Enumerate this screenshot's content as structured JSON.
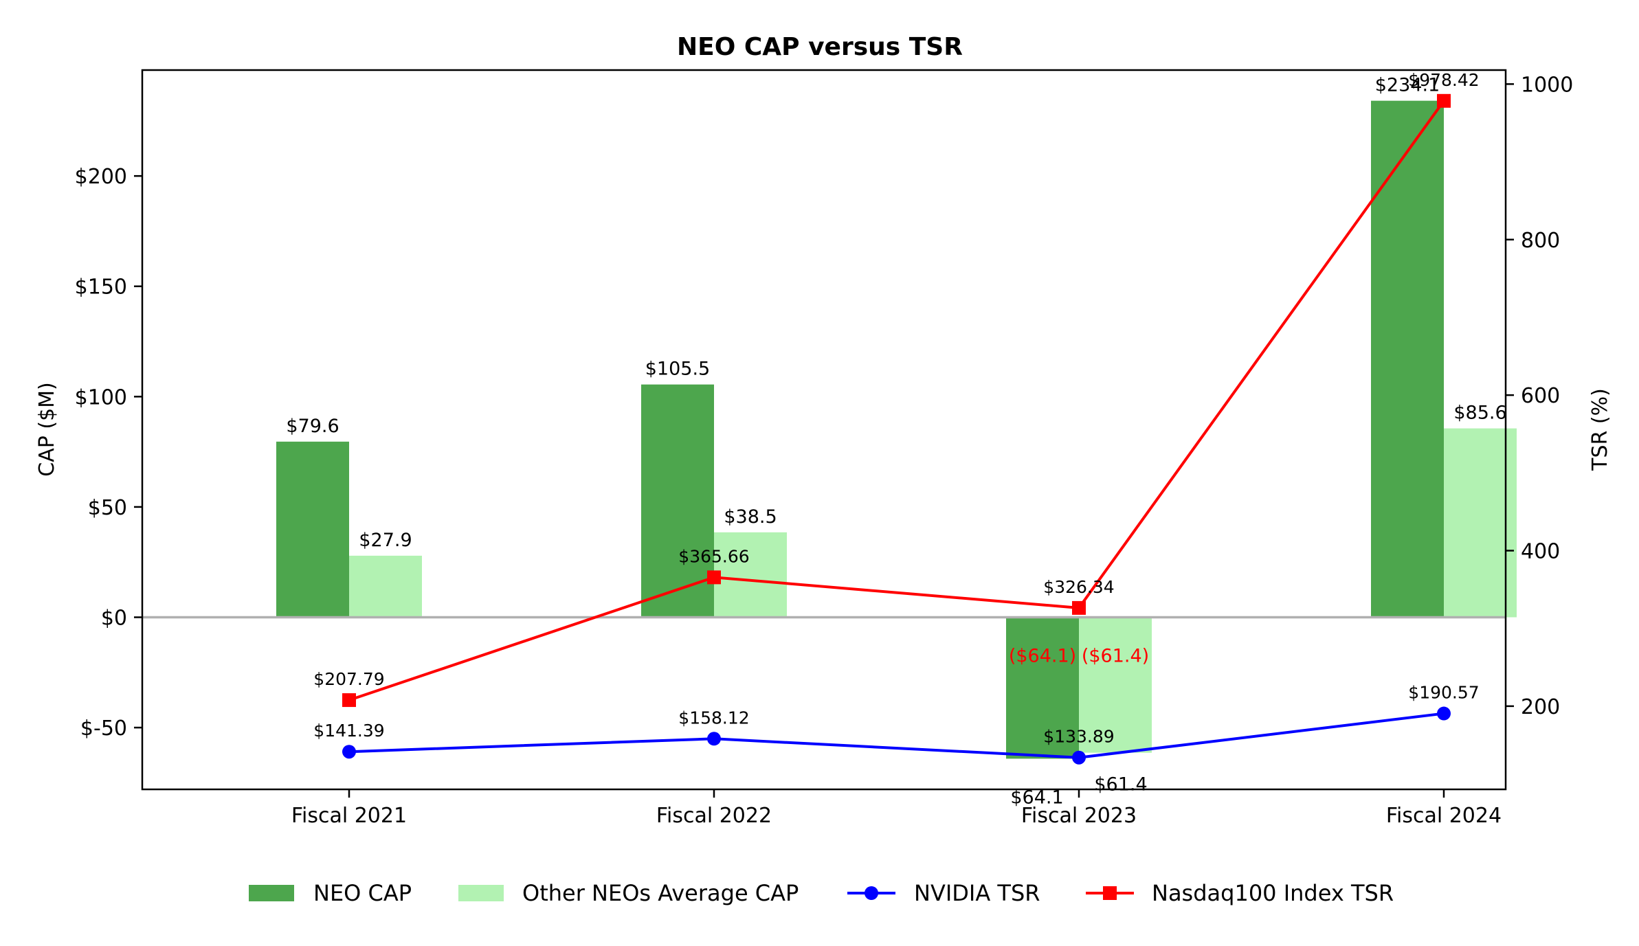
{
  "chart_data": {
    "type": "bar",
    "title": "NEO CAP versus TSR",
    "categories": [
      "Fiscal 2021",
      "Fiscal 2022",
      "Fiscal 2023",
      "Fiscal 2024"
    ],
    "y_left": {
      "label": "CAP ($M)",
      "lim": [
        -78,
        248
      ],
      "ticks": [
        -50,
        0,
        50,
        100,
        150,
        200
      ],
      "tick_labels": [
        "$-50",
        "$0",
        "$50",
        "$100",
        "$150",
        "$200"
      ]
    },
    "y_right": {
      "label": "TSR (%)",
      "lim": [
        93,
        1018
      ],
      "ticks": [
        200,
        400,
        600,
        800,
        1000
      ],
      "tick_labels": [
        "200",
        "400",
        "600",
        "800",
        "1000"
      ]
    },
    "bar_series": [
      {
        "name": "NEO CAP",
        "color": "#4da64d",
        "values": [
          79.6,
          105.5,
          -64.1,
          234.1
        ],
        "labels": [
          "$79.6",
          "$105.5",
          "$64.1",
          "$234.1"
        ],
        "negative_inner_labels": [
          "",
          "",
          "($64.1)",
          ""
        ]
      },
      {
        "name": "Other NEOs Average CAP",
        "color": "#b2f2b2",
        "values": [
          27.9,
          38.5,
          -61.4,
          85.6
        ],
        "labels": [
          "$27.9",
          "$38.5",
          "$61.4",
          "$85.6"
        ],
        "negative_inner_labels": [
          "",
          "",
          "($61.4)",
          ""
        ]
      }
    ],
    "line_series": [
      {
        "name": "NVIDIA TSR",
        "color": "#0000ff",
        "marker": "circle",
        "axis": "right",
        "values": [
          141.39,
          158.12,
          133.89,
          190.57
        ],
        "labels": [
          "$141.39",
          "$158.12",
          "$133.89",
          "$190.57"
        ]
      },
      {
        "name": "Nasdaq100 Index TSR",
        "color": "#ff0000",
        "marker": "square",
        "axis": "right",
        "values": [
          207.79,
          365.66,
          326.34,
          978.42
        ],
        "labels": [
          "$207.79",
          "$365.66",
          "$326.34",
          "$978.42"
        ]
      }
    ],
    "negative_label_color": "#ff0000",
    "zero_line_color": "#b0b0b0",
    "legend_position": "bottom-center",
    "grid": false
  }
}
